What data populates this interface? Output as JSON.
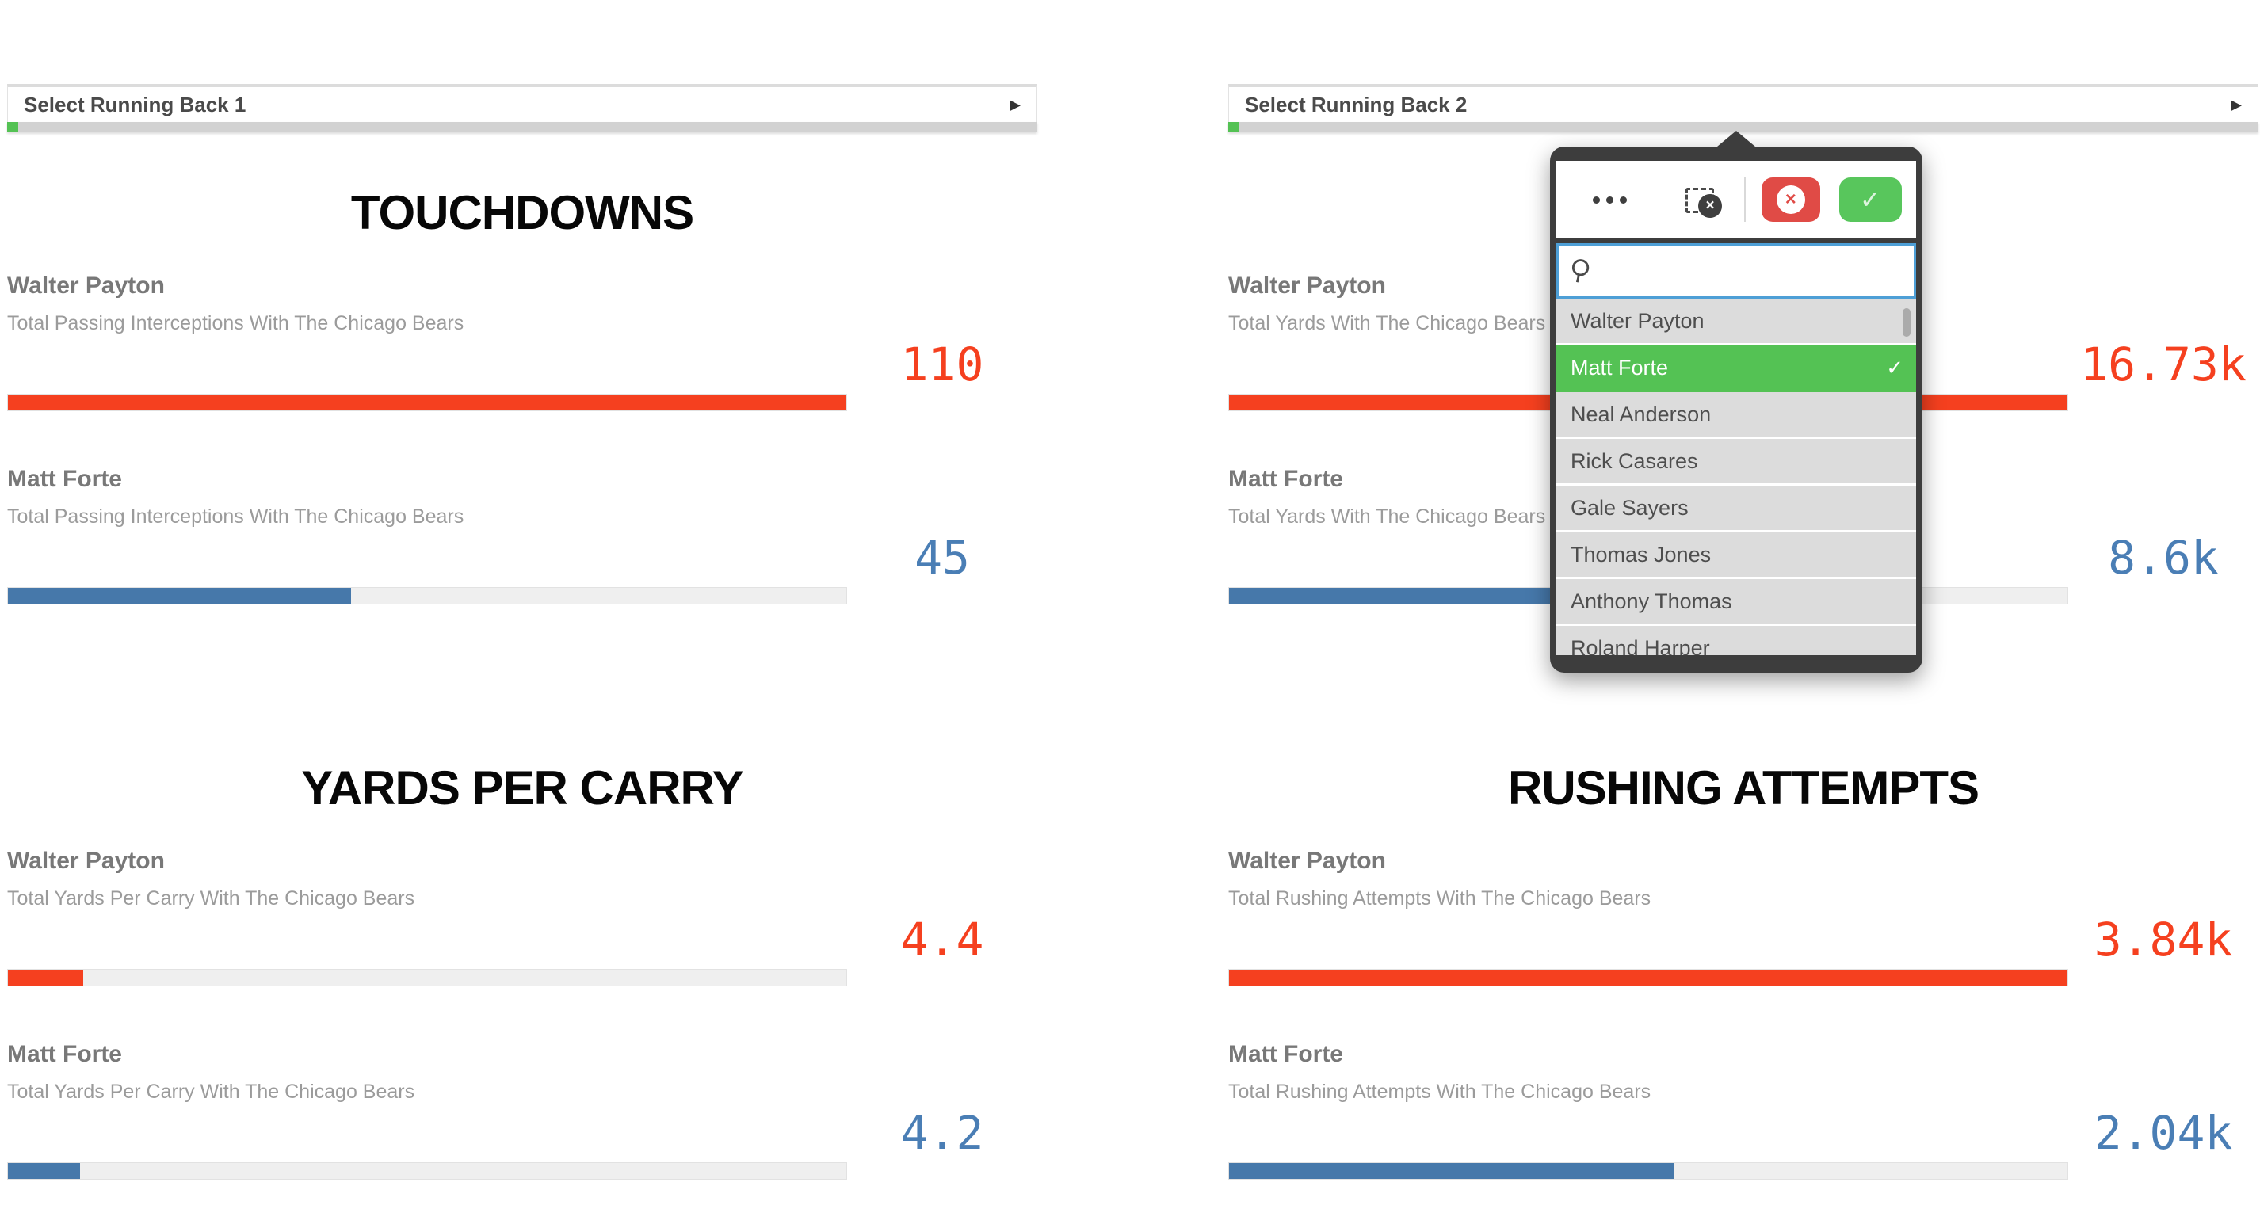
{
  "filters": [
    {
      "label": "Select Running Back 1"
    },
    {
      "label": "Select Running Back 2"
    }
  ],
  "colors": {
    "orange": "#F5401F",
    "blue": "#4A7EB5",
    "blue_bar": "#4678AA",
    "green": "#54C254",
    "red_btn": "#E04B46",
    "green_btn": "#58C65C",
    "search_border": "#4E9FD6",
    "strip": "#D2D2D2",
    "track": "#EFEFEF",
    "list_bg": "#DCDCDC",
    "popup_frame": "#3D3D3D"
  },
  "sections": [
    {
      "title": "TOUCHDOWNS",
      "rows": [
        {
          "player": "Walter Payton",
          "subtitle": "Total Passing Interceptions With The Chicago Bears",
          "value": "110",
          "bar_pct": 100,
          "color": "orange"
        },
        {
          "player": "Matt Forte",
          "subtitle": "Total Passing Interceptions With The Chicago Bears",
          "value": "45",
          "bar_pct": 40.9,
          "color": "blue"
        }
      ]
    },
    {
      "title": "",
      "rows": [
        {
          "player": "Walter Payton",
          "subtitle": "Total Yards With The Chicago Bears",
          "value": "16.73k",
          "bar_pct": 100,
          "color": "orange"
        },
        {
          "player": "Matt Forte",
          "subtitle": "Total Yards With The Chicago Bears",
          "value": "8.6k",
          "bar_pct": 51.4,
          "color": "blue"
        }
      ]
    },
    {
      "title": "YARDS PER CARRY",
      "rows": [
        {
          "player": "Walter Payton",
          "subtitle": "Total Yards Per Carry With The Chicago Bears",
          "value": "4.4",
          "bar_pct": 9.0,
          "color": "orange"
        },
        {
          "player": "Matt Forte",
          "subtitle": "Total Yards Per Carry With The Chicago Bears",
          "value": "4.2",
          "bar_pct": 8.6,
          "color": "blue"
        }
      ]
    },
    {
      "title": "RUSHING ATTEMPTS",
      "rows": [
        {
          "player": "Walter Payton",
          "subtitle": "Total Rushing Attempts With The Chicago Bears",
          "value": "3.84k",
          "bar_pct": 100,
          "color": "orange"
        },
        {
          "player": "Matt Forte",
          "subtitle": "Total Rushing Attempts With The Chicago Bears",
          "value": "2.04k",
          "bar_pct": 53.1,
          "color": "blue"
        }
      ]
    }
  ],
  "popup": {
    "search_value": "",
    "confirm_icon": "✓",
    "cancel_icon": "×",
    "clear_icon": "×",
    "items": [
      {
        "name": "Walter Payton",
        "selected": false
      },
      {
        "name": "Matt Forte",
        "selected": true
      },
      {
        "name": "Neal Anderson",
        "selected": false
      },
      {
        "name": "Rick Casares",
        "selected": false
      },
      {
        "name": "Gale Sayers",
        "selected": false
      },
      {
        "name": "Thomas Jones",
        "selected": false
      },
      {
        "name": "Anthony Thomas",
        "selected": false
      },
      {
        "name": "Roland Harper",
        "selected": false
      }
    ]
  },
  "chart_data": [
    {
      "type": "bar",
      "title": "TOUCHDOWNS",
      "categories": [
        "Walter Payton",
        "Matt Forte"
      ],
      "values": [
        110,
        45
      ],
      "value_labels": [
        "110",
        "45"
      ],
      "xlabel": "",
      "ylabel": ""
    },
    {
      "type": "bar",
      "title": "",
      "categories": [
        "Walter Payton",
        "Matt Forte"
      ],
      "values": [
        16730,
        8600
      ],
      "value_labels": [
        "16.73k",
        "8.6k"
      ],
      "xlabel": "",
      "ylabel": ""
    },
    {
      "type": "bar",
      "title": "YARDS PER CARRY",
      "categories": [
        "Walter Payton",
        "Matt Forte"
      ],
      "values": [
        4.4,
        4.2
      ],
      "value_labels": [
        "4.4",
        "4.2"
      ],
      "xlabel": "",
      "ylabel": ""
    },
    {
      "type": "bar",
      "title": "RUSHING ATTEMPTS",
      "categories": [
        "Walter Payton",
        "Matt Forte"
      ],
      "values": [
        3840,
        2040
      ],
      "value_labels": [
        "3.84k",
        "2.04k"
      ],
      "xlabel": "",
      "ylabel": ""
    }
  ]
}
